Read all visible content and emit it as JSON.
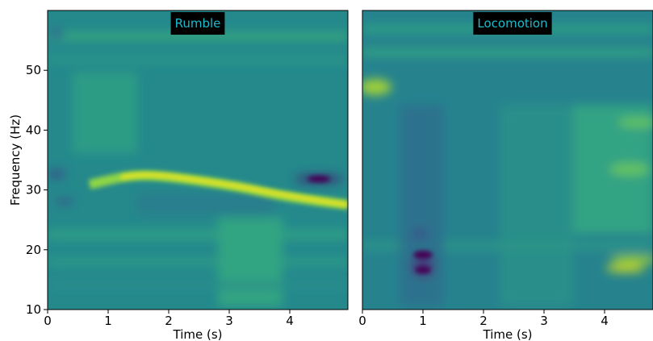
{
  "chart_data": [
    {
      "type": "spectrogram",
      "title": "Rumble",
      "xlabel": "Time (s)",
      "ylabel": "Frequency (Hz)",
      "xlim": [
        0,
        4.96
      ],
      "ylim": [
        10,
        60
      ],
      "xticks": [
        0,
        1,
        2,
        3,
        4
      ],
      "yticks": [
        10,
        20,
        30,
        40,
        50
      ]
    },
    {
      "type": "spectrogram",
      "title": "Locomotion",
      "xlabel": "Time (s)",
      "xlim": [
        0,
        4.8
      ],
      "ylim": [
        10,
        60
      ],
      "xticks": [
        0,
        1,
        2,
        3,
        4
      ]
    }
  ]
}
